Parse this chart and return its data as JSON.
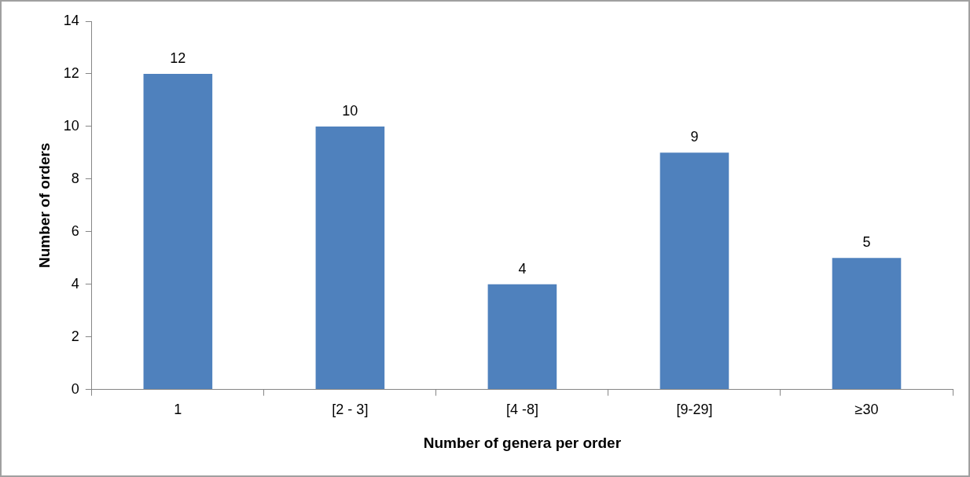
{
  "chart_data": {
    "type": "bar",
    "xlabel": "Number of genera per order",
    "ylabel": "Number of orders",
    "categories": [
      "1",
      "[2 - 3]",
      "[4 -8]",
      "[9-29]",
      "≥30"
    ],
    "values": [
      12,
      10,
      4,
      9,
      5
    ],
    "color": "#4f81bd",
    "ylim": [
      0,
      14
    ],
    "yticks": [
      0,
      2,
      4,
      6,
      8,
      10,
      12,
      14
    ],
    "data_labels": true,
    "grid": false,
    "legend": false
  }
}
